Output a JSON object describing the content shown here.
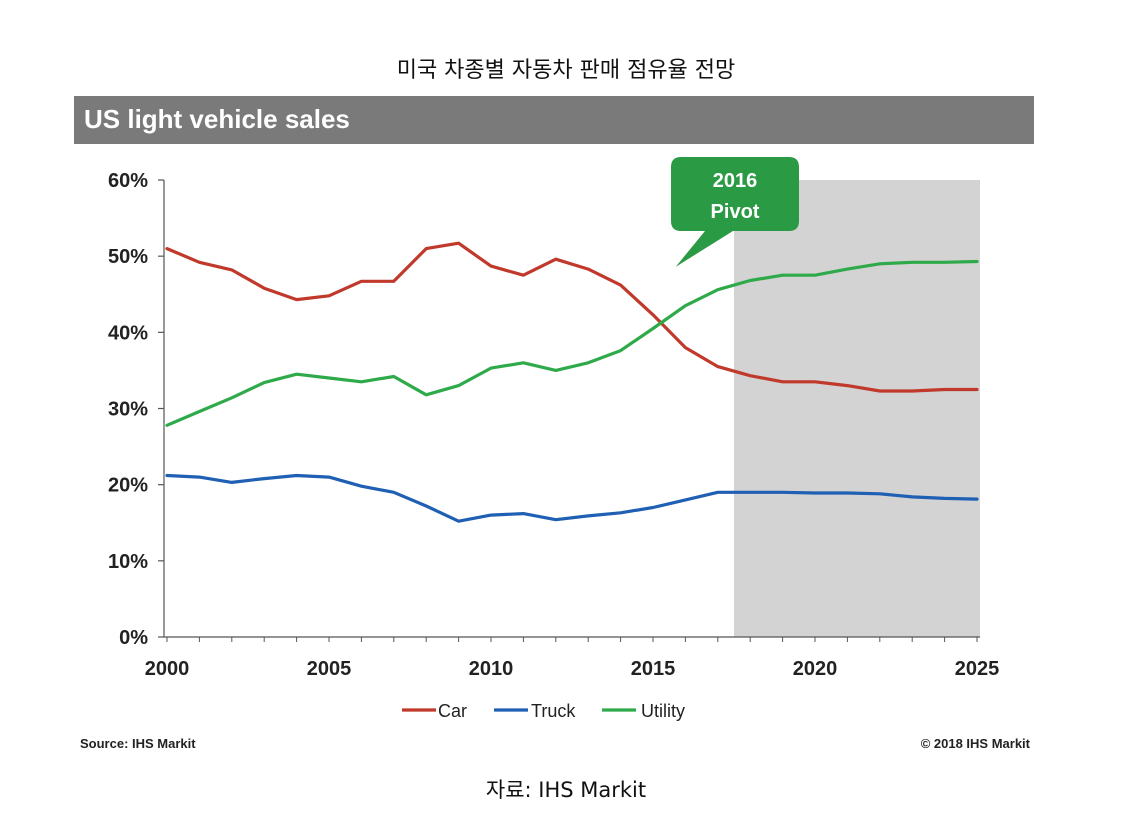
{
  "korean_title": "미국 차종별 자동차 판매 점유율 전망",
  "banner_title": "US light vehicle sales",
  "callout": {
    "line1": "2016",
    "line2": "Pivot"
  },
  "source_left": "Source: IHS Markit",
  "copyright_right": "© 2018 IHS Markit",
  "caption": "자료: IHS Markit",
  "colors": {
    "car": "#c0392b",
    "truck": "#1f5fb4",
    "utility": "#2eaa4a",
    "forecast_shade": "#d3d3d3",
    "callout": "#2b9a44",
    "banner": "#7a7a7a"
  },
  "chart_data": {
    "type": "line",
    "x": [
      2000,
      2001,
      2002,
      2003,
      2004,
      2005,
      2006,
      2007,
      2008,
      2009,
      2010,
      2011,
      2012,
      2013,
      2014,
      2015,
      2016,
      2017,
      2018,
      2019,
      2020,
      2021,
      2022,
      2023,
      2024,
      2025
    ],
    "series": [
      {
        "name": "Car",
        "color": "#c0392b",
        "values": [
          51.0,
          49.2,
          48.2,
          45.8,
          44.3,
          44.8,
          46.7,
          46.7,
          51.0,
          51.7,
          48.7,
          47.5,
          49.6,
          48.3,
          46.2,
          42.3,
          38.0,
          35.5,
          34.3,
          33.5,
          33.5,
          33.0,
          32.3,
          32.3,
          32.5,
          32.5
        ]
      },
      {
        "name": "Truck",
        "color": "#1f5fb4",
        "values": [
          21.2,
          21.0,
          20.3,
          20.8,
          21.2,
          21.0,
          19.8,
          19.0,
          17.2,
          15.2,
          16.0,
          16.2,
          15.4,
          15.9,
          16.3,
          17.0,
          18.0,
          19.0,
          19.0,
          19.0,
          18.9,
          18.9,
          18.8,
          18.4,
          18.2,
          18.1
        ]
      },
      {
        "name": "Utility",
        "color": "#2eaa4a",
        "values": [
          27.8,
          29.6,
          31.4,
          33.4,
          34.5,
          34.0,
          33.5,
          34.2,
          31.8,
          33.0,
          35.3,
          36.0,
          35.0,
          36.0,
          37.6,
          40.5,
          43.5,
          45.6,
          46.8,
          47.5,
          47.5,
          48.3,
          49.0,
          49.2,
          49.2,
          49.3
        ]
      }
    ],
    "xticks": [
      "2000",
      "2005",
      "2010",
      "2015",
      "2020",
      "2025"
    ],
    "yticks": [
      "0%",
      "10%",
      "20%",
      "30%",
      "40%",
      "50%",
      "60%"
    ],
    "xlim": [
      2000,
      2025
    ],
    "ylim": [
      0,
      60
    ],
    "forecast_region": [
      2017.5,
      2025
    ],
    "legend": [
      "Car",
      "Truck",
      "Utility"
    ],
    "legend_position": "bottom-center",
    "grid": false
  }
}
